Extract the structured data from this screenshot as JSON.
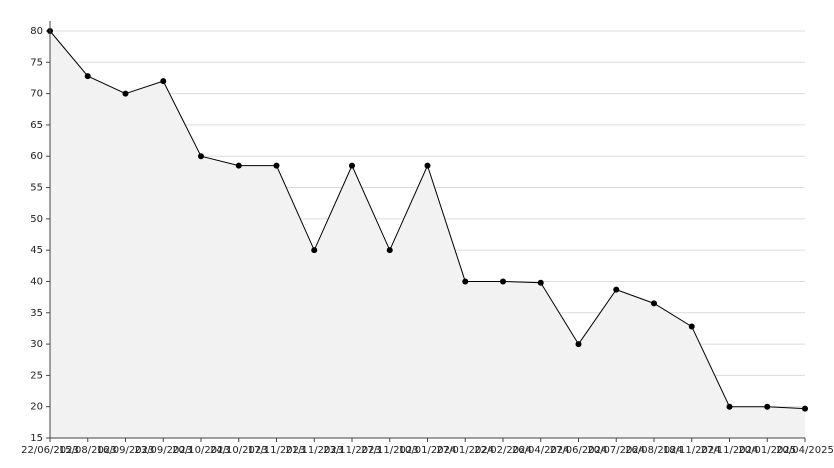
{
  "chart_data": {
    "type": "line",
    "categories": [
      "22/06/2023",
      "15/08/2023",
      "16/09/2023",
      "23/09/2023",
      "20/10/2023",
      "24/10/2023",
      "17/11/2023",
      "21/11/2023",
      "23/11/2023",
      "27/11/2023",
      "10/01/2024",
      "27/01/2024",
      "22/02/2024",
      "26/04/2024",
      "27/06/2024",
      "20/07/2024",
      "26/08/2024",
      "18/11/2024",
      "27/11/2024",
      "20/01/2025",
      "20/04/2025"
    ],
    "series": [
      {
        "name": "Value",
        "color": "#000000",
        "values": [
          80,
          72.8,
          70,
          72,
          60,
          58.5,
          58.5,
          45,
          58.5,
          45,
          58.5,
          40,
          40,
          39.8,
          30,
          38.7,
          36.5,
          32.8,
          20,
          20,
          19.7
        ]
      }
    ],
    "area_color": "#f2f2f2",
    "ylim": [
      15,
      80
    ],
    "yticks": [
      15,
      20,
      25,
      30,
      35,
      40,
      45,
      50,
      55,
      60,
      65,
      70,
      75,
      80
    ],
    "grid": true
  }
}
